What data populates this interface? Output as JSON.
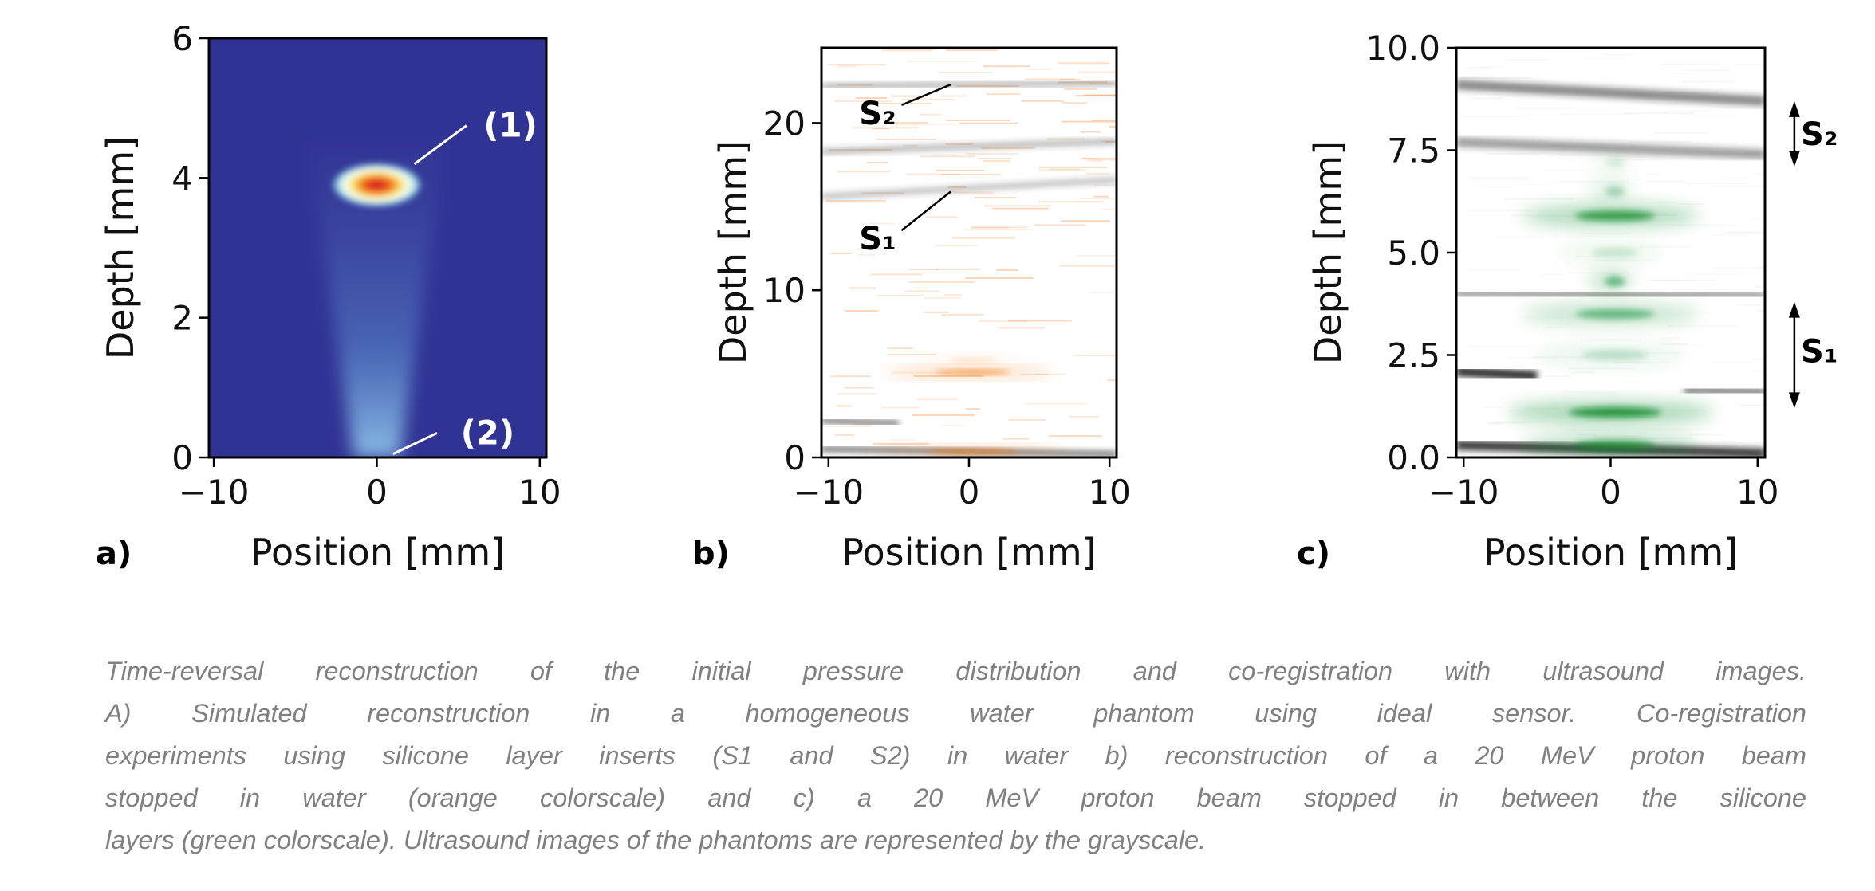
{
  "chart_data": [
    {
      "type": "heatmap",
      "panel_label": "a)",
      "xlabel": "Position [mm]",
      "ylabel": "Depth [mm]",
      "xlim": [
        -10.3,
        10.4
      ],
      "ylim": [
        0,
        6
      ],
      "xticks": [
        -10,
        0,
        10
      ],
      "xtick_labels": [
        "−10",
        "0",
        "10"
      ],
      "yticks": [
        0,
        2,
        4,
        6
      ],
      "ytick_labels": [
        "0",
        "2",
        "4",
        "6"
      ],
      "colormap": "jet-like (blue background, red peak)",
      "colors": {
        "background": "#313394",
        "cone": "#7fb2e0",
        "peak": "#d7191c"
      },
      "peak": {
        "x": 0,
        "depth": 3.9
      },
      "cone": {
        "depth_bottom": 0,
        "depth_top": 4.5
      },
      "annotations": [
        {
          "text": "(1)",
          "x": 8.2,
          "depth": 4.75,
          "line_to": {
            "x": 2.3,
            "depth": 4.2
          },
          "line_from": {
            "x": 5.5,
            "depth": 4.75
          }
        },
        {
          "text": "(2)",
          "x": 6.8,
          "depth": 0.35,
          "line_to": {
            "x": 1.0,
            "depth": 0.05
          },
          "line_from": {
            "x": 3.7,
            "depth": 0.35
          }
        }
      ]
    },
    {
      "type": "heatmap",
      "panel_label": "b)",
      "xlabel": "Position [mm]",
      "ylabel": "Depth [mm]",
      "xlim": [
        -10.5,
        10.5
      ],
      "ylim": [
        0,
        24.5
      ],
      "xticks": [
        -10,
        0,
        10
      ],
      "xtick_labels": [
        "−10",
        "0",
        "10"
      ],
      "yticks": [
        0,
        10,
        20
      ],
      "ytick_labels": [
        "0",
        "10",
        "20"
      ],
      "colormap": "orange colorscale over grayscale ultrasound",
      "colors": {
        "signal": "#f07010",
        "ultrasound": "#333333"
      },
      "ultrasound_lines": [
        {
          "depth_left": 24.2,
          "depth_right": 24.2,
          "strength": 0.45
        },
        {
          "depth_left": 22.2,
          "depth_right": 22.4,
          "strength": 0.5
        },
        {
          "depth_left": 18.3,
          "depth_right": 18.9,
          "strength": 0.5
        },
        {
          "depth_left": 15.6,
          "depth_right": 16.6,
          "strength": 0.45
        },
        {
          "depth_left": 12.8,
          "depth_right": 12.8,
          "strength": 0.12
        },
        {
          "depth_left": 10.8,
          "depth_right": 10.8,
          "strength": 0.1
        },
        {
          "depth_left": 7.2,
          "depth_right": 7.2,
          "strength": 0.1
        },
        {
          "depth_left": 2.2,
          "depth_right": 1.6,
          "strength": 0.9,
          "x_from": -10.5,
          "x_to": -5
        },
        {
          "depth_left": 0.5,
          "depth_right": 0.2,
          "strength": 0.95
        }
      ],
      "signal_bands": [
        {
          "depth": 5.1,
          "half_width": 6,
          "strength": 0.9
        },
        {
          "depth": 5.8,
          "half_width": 4,
          "strength": 0.25
        },
        {
          "depth": 0.35,
          "half_width": 7,
          "strength": 0.8
        }
      ],
      "annotations": [
        {
          "text": "S₂",
          "x": -6.5,
          "depth": 20.6,
          "line_to": {
            "x": -1.3,
            "depth": 22.3
          }
        },
        {
          "text": "S₁",
          "x": -6.5,
          "depth": 13.1,
          "line_to": {
            "x": -1.3,
            "depth": 15.9
          }
        }
      ]
    },
    {
      "type": "heatmap",
      "panel_label": "c)",
      "xlabel": "Position [mm]",
      "ylabel": "Depth [mm]",
      "xlim": [
        -10.5,
        10.5
      ],
      "ylim": [
        0,
        10
      ],
      "xticks": [
        -10,
        0,
        10
      ],
      "xtick_labels": [
        "−10",
        "0",
        "10"
      ],
      "yticks": [
        0,
        2.5,
        5,
        7.5,
        10
      ],
      "ytick_labels": [
        "0.0",
        "2.5",
        "5.0",
        "7.5",
        "10.0"
      ],
      "colormap": "green colorscale over grayscale ultrasound",
      "colors": {
        "signal": "#0a8a2a",
        "ultrasound": "#222222"
      },
      "ultrasound_lines": [
        {
          "depth_left": 9.1,
          "depth_right": 8.7,
          "strength": 0.55
        },
        {
          "depth_left": 7.7,
          "depth_right": 7.4,
          "strength": 0.45
        },
        {
          "depth_left": 4.0,
          "depth_right": 3.95,
          "strength": 0.4
        },
        {
          "depth_left": 2.1,
          "depth_right": 1.7,
          "strength": 0.95,
          "x_from": -10.5,
          "x_to": -5
        },
        {
          "depth_left": 1.8,
          "depth_right": 1.6,
          "strength": 0.5,
          "x_from": 5,
          "x_to": 10.5
        },
        {
          "depth_left": 0.3,
          "depth_right": 0.1,
          "strength": 0.9
        }
      ],
      "signal_bands": [
        {
          "depth": 6.5,
          "half_width": 1.5,
          "strength": 0.35
        },
        {
          "depth": 7.2,
          "half_width": 1.5,
          "strength": 0.15
        },
        {
          "depth": 5.9,
          "half_width": 6,
          "strength": 0.9
        },
        {
          "depth": 5.0,
          "half_width": 3.5,
          "strength": 0.2
        },
        {
          "depth": 4.3,
          "half_width": 1.5,
          "strength": 0.6
        },
        {
          "depth": 3.5,
          "half_width": 6,
          "strength": 0.6
        },
        {
          "depth": 2.5,
          "half_width": 5,
          "strength": 0.25
        },
        {
          "depth": 1.1,
          "half_width": 7,
          "strength": 1.0
        },
        {
          "depth": 0.3,
          "half_width": 6,
          "strength": 0.8
        }
      ],
      "annotations": [
        {
          "text": "S₂",
          "arrow_x": 12.5,
          "depth_top": 8.7,
          "depth_bottom": 7.1,
          "x": 14.2,
          "depth": 7.9
        },
        {
          "text": "S₁",
          "arrow_x": 12.5,
          "depth_top": 3.8,
          "depth_bottom": 1.2,
          "x": 14.2,
          "depth": 2.6
        }
      ]
    }
  ],
  "caption": {
    "lines": [
      "Time-reversal reconstruction of the initial pressure distribution and co-registration with ultrasound images.",
      "A) Simulated reconstruction in a homogeneous water phantom using ideal sensor. Co-registration",
      "experiments using silicone layer inserts (S1 and S2) in water b) reconstruction of a 20 MeV proton beam",
      "stopped in water (orange colorscale) and c) a 20 MeV proton beam stopped in between the silicone",
      "layers (green colorscale). Ultrasound images of the phantoms are represented by the grayscale."
    ]
  }
}
